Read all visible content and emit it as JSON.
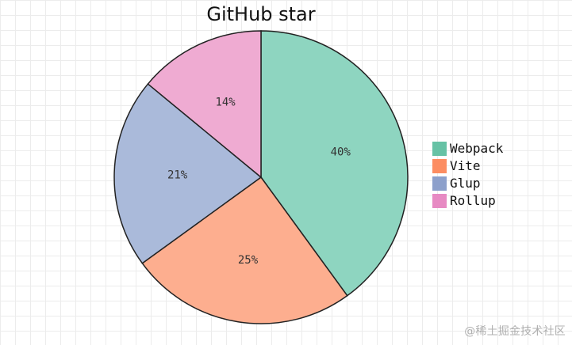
{
  "watermark": "@稀土掘金技术社区",
  "chart_data": {
    "type": "pie",
    "title": "GitHub star",
    "categories": [
      "Webpack",
      "Vite",
      "Glup",
      "Rollup"
    ],
    "values": [
      40,
      25,
      21,
      14
    ],
    "data_labels": [
      "40%",
      "25%",
      "21%",
      "14%"
    ],
    "colors": [
      "#66C2A5",
      "#FC8D62",
      "#8DA0CB",
      "#E78AC3"
    ],
    "slice_fill_colors": [
      "#8ED5C0",
      "#FDAE8F",
      "#AABADA",
      "#EFABD2"
    ],
    "legend_position": "right",
    "grid": true
  }
}
